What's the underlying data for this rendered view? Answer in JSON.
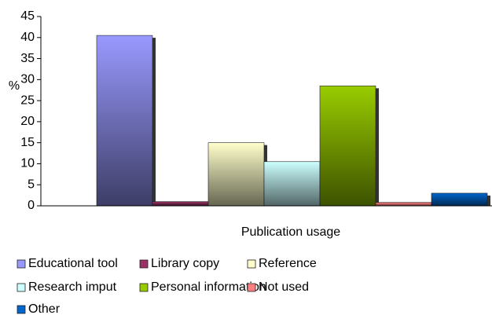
{
  "chart_data": {
    "type": "bar",
    "y_label": "%",
    "x_label": "Publication usage",
    "categories": [
      null
    ],
    "series": [
      {
        "name": "Educational tool",
        "color": "#9999ff",
        "values": [
          40.5
        ]
      },
      {
        "name": "Library copy",
        "color": "#993366",
        "values": [
          1
        ]
      },
      {
        "name": "Reference",
        "color": "#ffffcc",
        "values": [
          15
        ]
      },
      {
        "name": "Research imput",
        "color": "#ccffff",
        "values": [
          10.5
        ]
      },
      {
        "name": "Personal information",
        "color": "#99cc00",
        "values": [
          28.5
        ]
      },
      {
        "name": "Not used",
        "color": "#ff8080",
        "values": [
          0.8
        ]
      },
      {
        "name": "Other",
        "color": "#0066cc",
        "values": [
          3
        ]
      }
    ],
    "ylim": [
      0,
      45
    ],
    "yticks": [
      0,
      5,
      10,
      15,
      20,
      25,
      30,
      35,
      40,
      45
    ],
    "legend": "bottom"
  }
}
